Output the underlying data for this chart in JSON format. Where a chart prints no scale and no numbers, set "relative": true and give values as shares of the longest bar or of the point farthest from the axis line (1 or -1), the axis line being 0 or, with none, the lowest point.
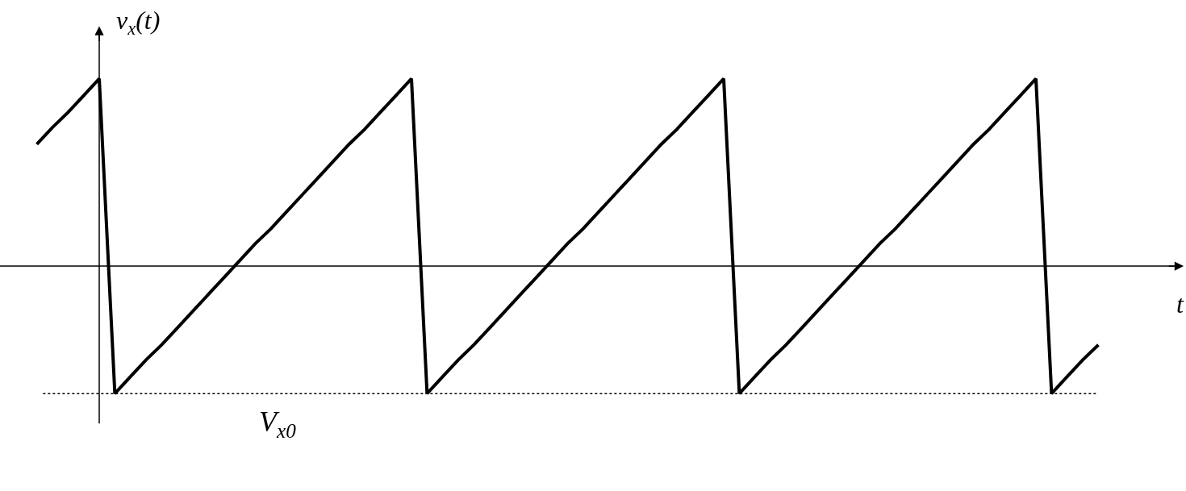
{
  "chart_data": {
    "type": "line",
    "relative": true,
    "xlabel": "t",
    "ylabel": "v$_{x}$(t)",
    "categories": [
      null,
      null,
      null,
      null,
      null,
      null,
      null,
      null,
      null,
      null,
      null,
      null,
      null,
      null,
      null,
      null,
      null,
      null,
      null,
      null,
      null,
      null,
      null,
      null,
      null,
      null,
      null,
      null,
      null,
      null,
      null,
      null,
      null,
      null,
      null,
      null,
      null,
      null,
      null,
      null,
      null,
      null,
      null,
      null,
      null,
      null,
      null,
      null,
      null,
      null,
      null,
      null,
      null,
      null,
      null,
      null,
      null,
      null,
      null,
      null,
      null,
      null,
      null,
      null,
      null,
      null,
      null,
      null,
      null
    ],
    "series": [
      {
        "color": "#000000",
        "values": [
          0.65,
          0.74,
          0.82,
          0.91,
          1,
          -0.68,
          -0.59,
          -0.5,
          -0.42,
          -0.33,
          -0.24,
          -0.15,
          -0.06,
          0.03,
          0.12,
          0.2,
          0.29,
          0.38,
          0.47,
          0.56,
          0.65,
          0.73,
          0.82,
          0.91,
          1,
          -0.68,
          -0.59,
          -0.5,
          -0.42,
          -0.33,
          -0.24,
          -0.15,
          -0.06,
          0.03,
          0.12,
          0.2,
          0.29,
          0.38,
          0.47,
          0.56,
          0.65,
          0.73,
          0.82,
          0.91,
          1,
          -0.68,
          -0.59,
          -0.5,
          -0.42,
          -0.33,
          -0.24,
          -0.15,
          -0.06,
          0.03,
          0.12,
          0.2,
          0.29,
          0.38,
          0.47,
          0.56,
          0.65,
          0.73,
          0.82,
          0.91,
          1,
          -0.68,
          -0.59,
          -0.5,
          -0.42
        ]
      }
    ],
    "ref_lines": [
      {
        "axis": "y",
        "value": -0.68,
        "label": "V$_{x0}$",
        "color": "#000000",
        "line_style": "dotted"
      }
    ]
  }
}
